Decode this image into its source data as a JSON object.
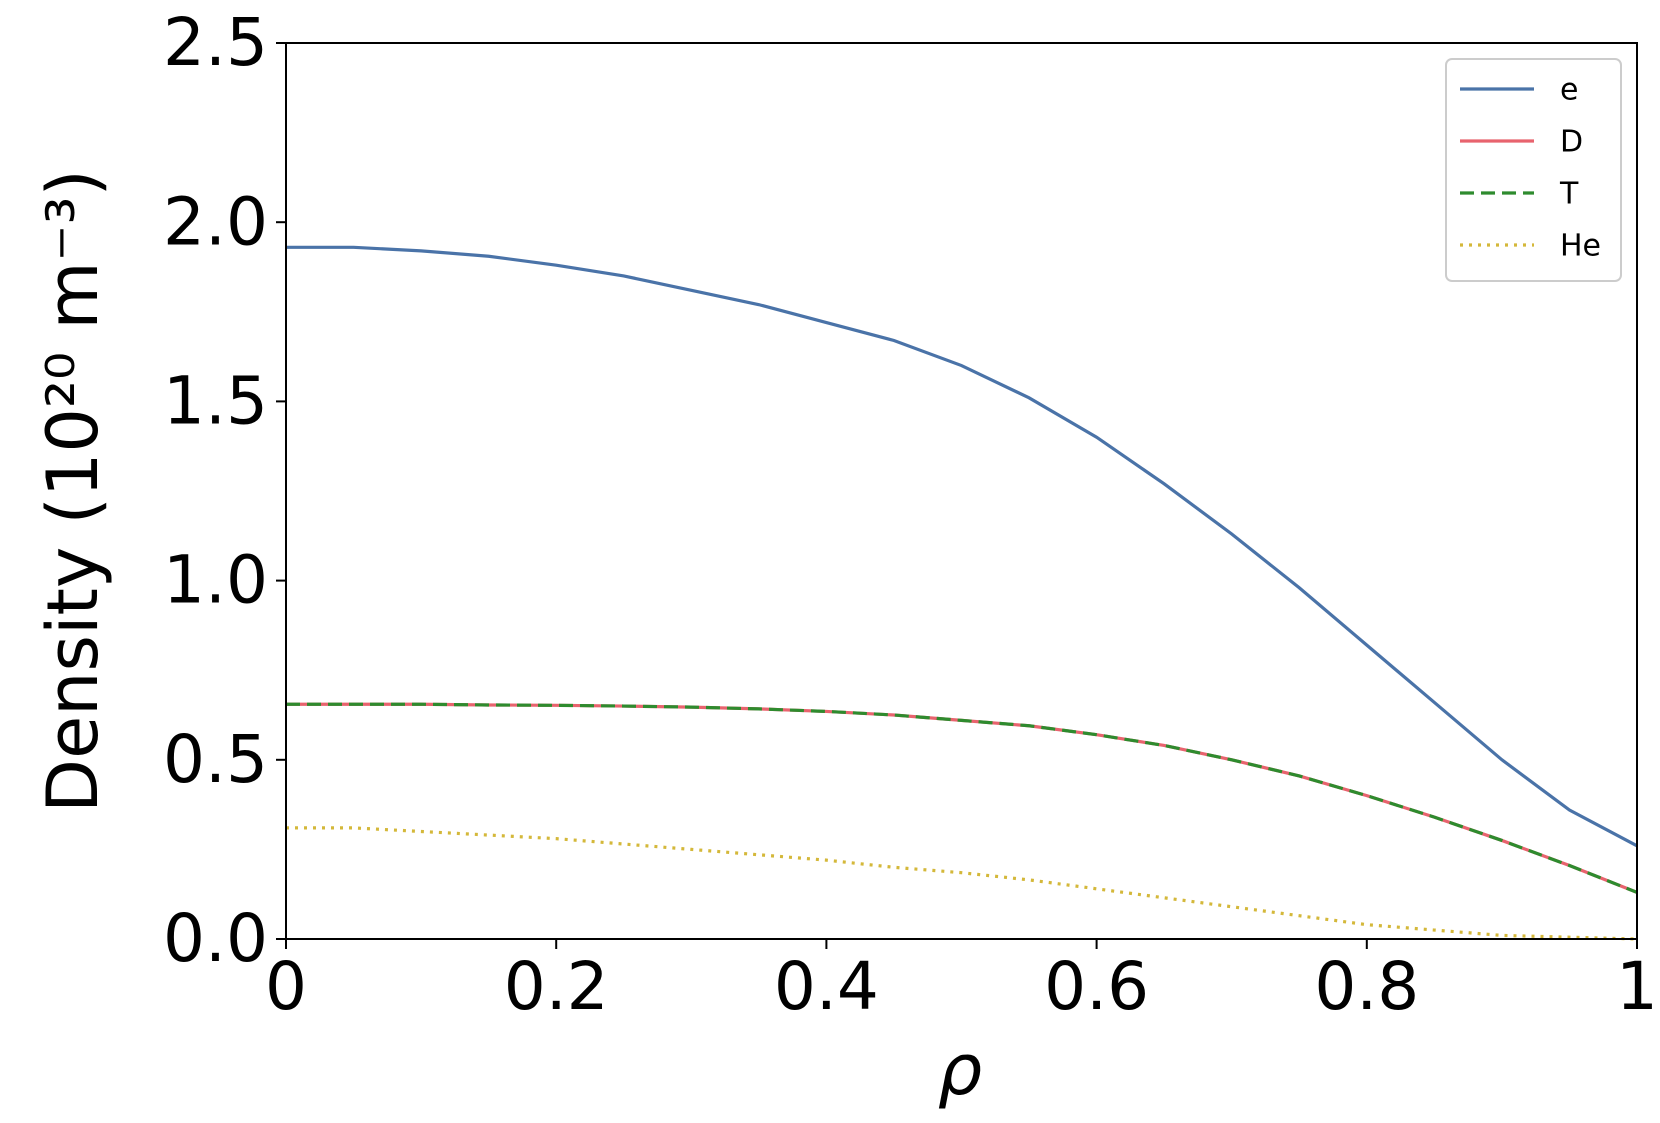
{
  "chart_data": {
    "type": "line",
    "xlabel": "ρ",
    "ylabel": "Density (10²⁰ m⁻³)",
    "x": [
      0,
      0.05,
      0.1,
      0.15,
      0.2,
      0.25,
      0.3,
      0.35,
      0.4,
      0.45,
      0.5,
      0.55,
      0.6,
      0.65,
      0.7,
      0.75,
      0.8,
      0.85,
      0.9,
      0.95,
      1
    ],
    "series": [
      {
        "name": "e",
        "color": "#4a73a8",
        "linestyle": "solid",
        "values": [
          1.93,
          1.93,
          1.92,
          1.905,
          1.88,
          1.85,
          1.81,
          1.77,
          1.72,
          1.67,
          1.6,
          1.51,
          1.4,
          1.27,
          1.13,
          0.98,
          0.82,
          0.66,
          0.5,
          0.36,
          0.26
        ]
      },
      {
        "name": "D",
        "color": "#e8636e",
        "linestyle": "solid",
        "values": [
          0.655,
          0.655,
          0.655,
          0.653,
          0.652,
          0.65,
          0.647,
          0.642,
          0.635,
          0.625,
          0.61,
          0.595,
          0.57,
          0.54,
          0.5,
          0.455,
          0.4,
          0.34,
          0.275,
          0.205,
          0.13
        ]
      },
      {
        "name": "T",
        "color": "#2e8b2e",
        "linestyle": "dashed",
        "values": [
          0.655,
          0.655,
          0.655,
          0.653,
          0.652,
          0.65,
          0.647,
          0.642,
          0.635,
          0.625,
          0.61,
          0.595,
          0.57,
          0.54,
          0.5,
          0.455,
          0.4,
          0.34,
          0.275,
          0.205,
          0.13
        ]
      },
      {
        "name": "He",
        "color": "#d4b83a",
        "linestyle": "dotted",
        "values": [
          0.31,
          0.31,
          0.3,
          0.29,
          0.28,
          0.265,
          0.25,
          0.235,
          0.22,
          0.2,
          0.185,
          0.165,
          0.14,
          0.115,
          0.09,
          0.065,
          0.04,
          0.025,
          0.01,
          0.005,
          0.0
        ]
      }
    ],
    "xlim": [
      0,
      1
    ],
    "xticks": [
      0,
      0.2,
      0.4,
      0.6,
      0.8,
      1
    ],
    "ylim": [
      0,
      2.5
    ],
    "yticks": [
      {
        "value": 0,
        "label": "0.0"
      },
      0.5,
      {
        "value": 1,
        "label": "1.0"
      },
      1.5,
      {
        "value": 2,
        "label": "2.0"
      },
      2.5
    ],
    "legend": "upper right",
    "grid": false
  }
}
